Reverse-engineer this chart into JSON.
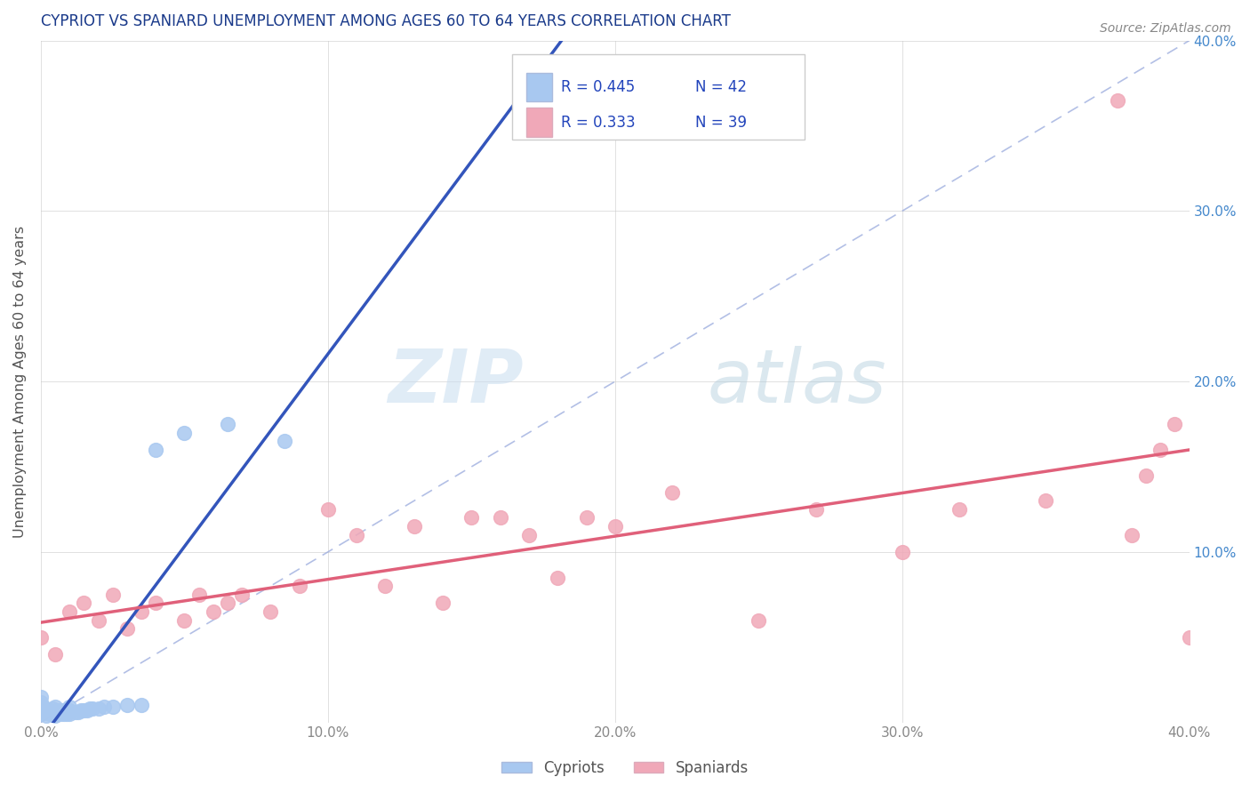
{
  "title": "CYPRIOT VS SPANIARD UNEMPLOYMENT AMONG AGES 60 TO 64 YEARS CORRELATION CHART",
  "source": "Source: ZipAtlas.com",
  "ylabel": "Unemployment Among Ages 60 to 64 years",
  "xlim": [
    0.0,
    0.4
  ],
  "ylim": [
    0.0,
    0.4
  ],
  "xticks": [
    0.0,
    0.1,
    0.2,
    0.3,
    0.4
  ],
  "yticks": [
    0.0,
    0.1,
    0.2,
    0.3,
    0.4
  ],
  "xtick_labels": [
    "0.0%",
    "10.0%",
    "20.0%",
    "30.0%",
    "40.0%"
  ],
  "right_ytick_labels": [
    "",
    "10.0%",
    "20.0%",
    "30.0%",
    "40.0%"
  ],
  "grid_color": "#cccccc",
  "background_color": "#ffffff",
  "watermark_zip": "ZIP",
  "watermark_atlas": "atlas",
  "legend_r_cypriot": "R = 0.445",
  "legend_n_cypriot": "N = 42",
  "legend_r_spaniard": "R = 0.333",
  "legend_n_spaniard": "N = 39",
  "cypriot_color": "#a8c8f0",
  "spaniard_color": "#f0a8b8",
  "cypriot_line_color": "#3355bb",
  "spaniard_line_color": "#e0607a",
  "dash_color": "#99aadd",
  "cypriot_x": [
    0.0,
    0.0,
    0.0,
    0.0,
    0.0,
    0.002,
    0.002,
    0.002,
    0.003,
    0.003,
    0.004,
    0.004,
    0.005,
    0.005,
    0.005,
    0.006,
    0.006,
    0.007,
    0.007,
    0.008,
    0.008,
    0.009,
    0.009,
    0.01,
    0.01,
    0.01,
    0.012,
    0.013,
    0.014,
    0.015,
    0.016,
    0.017,
    0.018,
    0.02,
    0.022,
    0.025,
    0.03,
    0.035,
    0.04,
    0.05,
    0.065,
    0.085
  ],
  "cypriot_y": [
    0.005,
    0.008,
    0.01,
    0.012,
    0.015,
    0.004,
    0.006,
    0.008,
    0.005,
    0.007,
    0.005,
    0.008,
    0.004,
    0.006,
    0.009,
    0.005,
    0.007,
    0.005,
    0.007,
    0.005,
    0.007,
    0.005,
    0.007,
    0.005,
    0.007,
    0.009,
    0.006,
    0.006,
    0.007,
    0.007,
    0.007,
    0.008,
    0.008,
    0.008,
    0.009,
    0.009,
    0.01,
    0.01,
    0.16,
    0.17,
    0.175,
    0.165
  ],
  "spaniard_x": [
    0.0,
    0.005,
    0.01,
    0.015,
    0.02,
    0.025,
    0.03,
    0.035,
    0.04,
    0.05,
    0.055,
    0.06,
    0.065,
    0.07,
    0.08,
    0.09,
    0.1,
    0.11,
    0.12,
    0.13,
    0.14,
    0.15,
    0.16,
    0.17,
    0.18,
    0.19,
    0.2,
    0.22,
    0.25,
    0.27,
    0.3,
    0.32,
    0.35,
    0.375,
    0.38,
    0.385,
    0.39,
    0.395,
    0.4
  ],
  "spaniard_y": [
    0.05,
    0.04,
    0.065,
    0.07,
    0.06,
    0.075,
    0.055,
    0.065,
    0.07,
    0.06,
    0.075,
    0.065,
    0.07,
    0.075,
    0.065,
    0.08,
    0.125,
    0.11,
    0.08,
    0.115,
    0.07,
    0.12,
    0.12,
    0.11,
    0.085,
    0.12,
    0.115,
    0.135,
    0.06,
    0.125,
    0.1,
    0.125,
    0.13,
    0.365,
    0.11,
    0.145,
    0.16,
    0.175,
    0.05
  ],
  "title_color": "#1a3a8a",
  "axis_label_color": "#555555",
  "left_tick_color": "#888888",
  "right_tick_color": "#4488cc",
  "legend_text_color": "#2244bb"
}
